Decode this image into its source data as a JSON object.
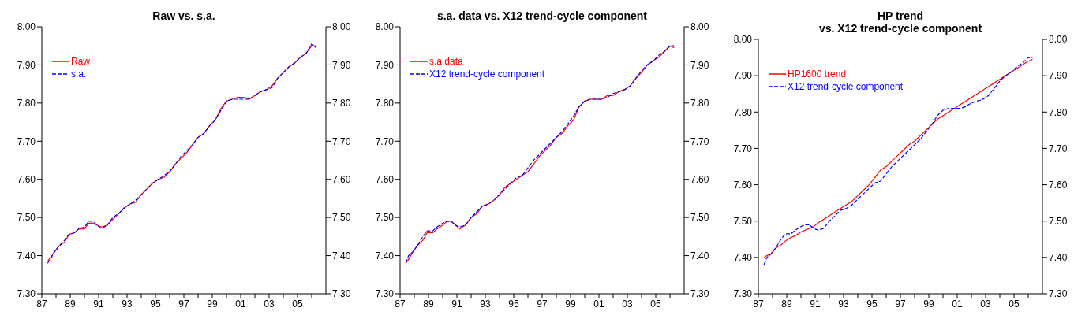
{
  "chart_data": [
    {
      "type": "line",
      "title": "Raw vs. s.a.",
      "legend": "top left",
      "grid": false,
      "x": [
        1987.4,
        1987.6,
        1987.9,
        1988.2,
        1988.6,
        1988.9,
        1989.3,
        1989.6,
        1990.0,
        1990.3,
        1990.6,
        1990.9,
        1991.2,
        1991.6,
        1992.0,
        1992.4,
        1992.8,
        1993.2,
        1993.6,
        1994.0,
        1994.4,
        1994.8,
        1995.2,
        1995.6,
        1996.0,
        1996.4,
        1996.8,
        1997.2,
        1997.6,
        1998.0,
        1998.4,
        1998.8,
        1999.2,
        1999.6,
        2000.0,
        2000.4,
        2000.8,
        2001.2,
        2001.6,
        2002.0,
        2002.4,
        2002.8,
        2003.2,
        2003.6,
        2004.0,
        2004.4,
        2004.8,
        2005.2,
        2005.6,
        2006.0,
        2006.3
      ],
      "series": [
        {
          "name": "Raw",
          "color": "#ff0000",
          "line_style": "solid",
          "values": [
            7.385,
            7.395,
            7.41,
            7.425,
            7.435,
            7.455,
            7.46,
            7.47,
            7.47,
            7.485,
            7.485,
            7.48,
            7.475,
            7.48,
            7.495,
            7.51,
            7.525,
            7.535,
            7.54,
            7.56,
            7.575,
            7.59,
            7.6,
            7.605,
            7.62,
            7.64,
            7.655,
            7.67,
            7.69,
            7.71,
            7.72,
            7.74,
            7.755,
            7.785,
            7.805,
            7.81,
            7.815,
            7.815,
            7.81,
            7.82,
            7.83,
            7.835,
            7.845,
            7.865,
            7.88,
            7.895,
            7.905,
            7.92,
            7.93,
            7.95,
            7.95
          ]
        },
        {
          "name": "s.a.",
          "color": "#0000ff",
          "line_style": "dashed",
          "values": [
            7.38,
            7.39,
            7.41,
            7.425,
            7.44,
            7.455,
            7.46,
            7.47,
            7.475,
            7.49,
            7.49,
            7.48,
            7.47,
            7.48,
            7.5,
            7.51,
            7.525,
            7.535,
            7.545,
            7.56,
            7.575,
            7.59,
            7.6,
            7.61,
            7.62,
            7.64,
            7.66,
            7.675,
            7.69,
            7.71,
            7.72,
            7.74,
            7.755,
            7.78,
            7.805,
            7.81,
            7.81,
            7.81,
            7.81,
            7.82,
            7.83,
            7.835,
            7.84,
            7.865,
            7.88,
            7.895,
            7.905,
            7.92,
            7.93,
            7.955,
            7.945
          ]
        }
      ],
      "xlim": [
        1987,
        2007
      ],
      "xticks": [
        {
          "value": 1987,
          "label": "87"
        },
        {
          "value": 1988,
          "label": null
        },
        {
          "value": 1989,
          "label": "89"
        },
        {
          "value": 1990,
          "label": null
        },
        {
          "value": 1991,
          "label": "91"
        },
        {
          "value": 1992,
          "label": null
        },
        {
          "value": 1993,
          "label": "93"
        },
        {
          "value": 1994,
          "label": null
        },
        {
          "value": 1995,
          "label": "95"
        },
        {
          "value": 1996,
          "label": null
        },
        {
          "value": 1997,
          "label": "97"
        },
        {
          "value": 1998,
          "label": null
        },
        {
          "value": 1999,
          "label": "99"
        },
        {
          "value": 2000,
          "label": null
        },
        {
          "value": 2001,
          "label": "01"
        },
        {
          "value": 2002,
          "label": null
        },
        {
          "value": 2003,
          "label": "03"
        },
        {
          "value": 2004,
          "label": null
        },
        {
          "value": 2005,
          "label": "05"
        },
        {
          "value": 2006,
          "label": null
        }
      ],
      "ylim": [
        7.3,
        8.0
      ],
      "yticks": [
        {
          "value": 7.3,
          "label": "7.30"
        },
        {
          "value": 7.4,
          "label": "7.40"
        },
        {
          "value": 7.5,
          "label": "7.50"
        },
        {
          "value": 7.6,
          "label": "7.60"
        },
        {
          "value": 7.7,
          "label": "7.70"
        },
        {
          "value": 7.8,
          "label": "7.80"
        },
        {
          "value": 7.9,
          "label": "7.90"
        },
        {
          "value": 8.0,
          "label": "8.00"
        }
      ],
      "y2lim": [
        7.3,
        8.0
      ],
      "y2ticks": [
        {
          "value": 7.3,
          "label": "7.30"
        },
        {
          "value": 7.4,
          "label": "7.40"
        },
        {
          "value": 7.5,
          "label": "7.50"
        },
        {
          "value": 7.6,
          "label": "7.60"
        },
        {
          "value": 7.7,
          "label": "7.70"
        },
        {
          "value": 7.8,
          "label": "7.80"
        },
        {
          "value": 7.9,
          "label": "7.90"
        },
        {
          "value": 8.0,
          "label": "8.00"
        }
      ]
    },
    {
      "type": "line",
      "title": "s.a. data vs. X12 trend-cycle component",
      "legend": "top left",
      "grid": false,
      "x": [
        1987.4,
        1987.6,
        1987.9,
        1988.2,
        1988.6,
        1988.9,
        1989.3,
        1989.6,
        1990.0,
        1990.3,
        1990.6,
        1990.9,
        1991.2,
        1991.6,
        1992.0,
        1992.4,
        1992.8,
        1993.2,
        1993.6,
        1994.0,
        1994.4,
        1994.8,
        1995.2,
        1995.6,
        1996.0,
        1996.4,
        1996.8,
        1997.2,
        1997.6,
        1998.0,
        1998.4,
        1998.8,
        1999.2,
        1999.6,
        2000.0,
        2000.4,
        2000.8,
        2001.2,
        2001.6,
        2002.0,
        2002.4,
        2002.8,
        2003.2,
        2003.6,
        2004.0,
        2004.4,
        2004.8,
        2005.2,
        2005.6,
        2006.0,
        2006.3
      ],
      "series": [
        {
          "name": "s.a.data",
          "color": "#ff0000",
          "line_style": "solid",
          "values": [
            7.38,
            7.39,
            7.41,
            7.425,
            7.44,
            7.46,
            7.46,
            7.47,
            7.48,
            7.49,
            7.49,
            7.48,
            7.47,
            7.48,
            7.5,
            7.51,
            7.53,
            7.535,
            7.545,
            7.56,
            7.58,
            7.59,
            7.6,
            7.61,
            7.62,
            7.64,
            7.66,
            7.675,
            7.69,
            7.71,
            7.72,
            7.74,
            7.755,
            7.79,
            7.805,
            7.81,
            7.81,
            7.81,
            7.82,
            7.82,
            7.83,
            7.835,
            7.845,
            7.865,
            7.88,
            7.9,
            7.91,
            7.92,
            7.935,
            7.95,
            7.945
          ]
        },
        {
          "name": "X12 trend-cycle component",
          "color": "#0000ff",
          "line_style": "dashed",
          "values": [
            7.38,
            7.4,
            7.41,
            7.425,
            7.45,
            7.465,
            7.465,
            7.475,
            7.485,
            7.49,
            7.49,
            7.48,
            7.475,
            7.48,
            7.5,
            7.515,
            7.53,
            7.535,
            7.545,
            7.56,
            7.575,
            7.59,
            7.605,
            7.61,
            7.63,
            7.65,
            7.665,
            7.68,
            7.695,
            7.71,
            7.725,
            7.745,
            7.765,
            7.79,
            7.805,
            7.81,
            7.81,
            7.81,
            7.815,
            7.825,
            7.83,
            7.835,
            7.845,
            7.865,
            7.885,
            7.9,
            7.91,
            7.925,
            7.935,
            7.95,
            7.95
          ]
        }
      ],
      "xlim": [
        1987,
        2007
      ],
      "xticks": [
        {
          "value": 1987,
          "label": "87"
        },
        {
          "value": 1988,
          "label": null
        },
        {
          "value": 1989,
          "label": "89"
        },
        {
          "value": 1990,
          "label": null
        },
        {
          "value": 1991,
          "label": "91"
        },
        {
          "value": 1992,
          "label": null
        },
        {
          "value": 1993,
          "label": "93"
        },
        {
          "value": 1994,
          "label": null
        },
        {
          "value": 1995,
          "label": "95"
        },
        {
          "value": 1996,
          "label": null
        },
        {
          "value": 1997,
          "label": "97"
        },
        {
          "value": 1998,
          "label": null
        },
        {
          "value": 1999,
          "label": "99"
        },
        {
          "value": 2000,
          "label": null
        },
        {
          "value": 2001,
          "label": "01"
        },
        {
          "value": 2002,
          "label": null
        },
        {
          "value": 2003,
          "label": "03"
        },
        {
          "value": 2004,
          "label": null
        },
        {
          "value": 2005,
          "label": "05"
        },
        {
          "value": 2006,
          "label": null
        }
      ],
      "ylim": [
        7.3,
        8.0
      ],
      "yticks": [
        {
          "value": 7.3,
          "label": "7.30"
        },
        {
          "value": 7.4,
          "label": "7.40"
        },
        {
          "value": 7.5,
          "label": "7.50"
        },
        {
          "value": 7.6,
          "label": "7.60"
        },
        {
          "value": 7.7,
          "label": "7.70"
        },
        {
          "value": 7.8,
          "label": "7.80"
        },
        {
          "value": 7.9,
          "label": "7.90"
        },
        {
          "value": 8.0,
          "label": "8.00"
        }
      ],
      "y2lim": [
        7.3,
        8.0
      ],
      "y2ticks": [
        {
          "value": 7.3,
          "label": "7.30"
        },
        {
          "value": 7.4,
          "label": "7.40"
        },
        {
          "value": 7.5,
          "label": "7.50"
        },
        {
          "value": 7.6,
          "label": "7.60"
        },
        {
          "value": 7.7,
          "label": "7.70"
        },
        {
          "value": 7.8,
          "label": "7.80"
        },
        {
          "value": 7.9,
          "label": "7.90"
        },
        {
          "value": 8.0,
          "label": "8.00"
        }
      ]
    },
    {
      "type": "line",
      "title": "HP trend\nvs. X12 trend-cycle component",
      "legend": "top left",
      "grid": false,
      "x": [
        1987.4,
        1987.6,
        1987.9,
        1988.2,
        1988.6,
        1988.9,
        1989.3,
        1989.6,
        1990.0,
        1990.3,
        1990.6,
        1990.9,
        1991.2,
        1991.6,
        1992.0,
        1992.4,
        1992.8,
        1993.2,
        1993.6,
        1994.0,
        1994.4,
        1994.8,
        1995.2,
        1995.6,
        1996.0,
        1996.4,
        1996.8,
        1997.2,
        1997.6,
        1998.0,
        1998.4,
        1998.8,
        1999.2,
        1999.6,
        2000.0,
        2000.4,
        2000.8,
        2001.2,
        2001.6,
        2002.0,
        2002.4,
        2002.8,
        2003.2,
        2003.6,
        2004.0,
        2004.4,
        2004.8,
        2005.2,
        2005.6,
        2006.0,
        2006.3
      ],
      "series": [
        {
          "name": "HP1600 trend",
          "color": "#ff0000",
          "line_style": "solid",
          "values": [
            7.4,
            7.405,
            7.41,
            7.425,
            7.435,
            7.445,
            7.455,
            7.46,
            7.47,
            7.475,
            7.48,
            7.485,
            7.495,
            7.505,
            7.515,
            7.525,
            7.535,
            7.545,
            7.555,
            7.57,
            7.585,
            7.6,
            7.62,
            7.64,
            7.65,
            7.665,
            7.68,
            7.695,
            7.71,
            7.72,
            7.735,
            7.75,
            7.765,
            7.78,
            7.79,
            7.8,
            7.81,
            7.82,
            7.83,
            7.84,
            7.85,
            7.86,
            7.87,
            7.88,
            7.89,
            7.9,
            7.91,
            7.92,
            7.93,
            7.94,
            7.945
          ]
        },
        {
          "name": "X12 trend-cycle component",
          "color": "#0000ff",
          "line_style": "dashed",
          "values": [
            7.38,
            7.4,
            7.41,
            7.425,
            7.45,
            7.465,
            7.465,
            7.475,
            7.485,
            7.49,
            7.49,
            7.48,
            7.475,
            7.48,
            7.5,
            7.515,
            7.53,
            7.535,
            7.545,
            7.56,
            7.575,
            7.59,
            7.605,
            7.61,
            7.63,
            7.65,
            7.665,
            7.68,
            7.695,
            7.71,
            7.725,
            7.745,
            7.765,
            7.79,
            7.805,
            7.81,
            7.81,
            7.81,
            7.815,
            7.825,
            7.83,
            7.835,
            7.845,
            7.865,
            7.885,
            7.9,
            7.91,
            7.925,
            7.935,
            7.95,
            7.95
          ]
        }
      ],
      "xlim": [
        1987,
        2007
      ],
      "xticks": [
        {
          "value": 1987,
          "label": "87"
        },
        {
          "value": 1988,
          "label": null
        },
        {
          "value": 1989,
          "label": "89"
        },
        {
          "value": 1990,
          "label": null
        },
        {
          "value": 1991,
          "label": "91"
        },
        {
          "value": 1992,
          "label": null
        },
        {
          "value": 1993,
          "label": "93"
        },
        {
          "value": 1994,
          "label": null
        },
        {
          "value": 1995,
          "label": "95"
        },
        {
          "value": 1996,
          "label": null
        },
        {
          "value": 1997,
          "label": "97"
        },
        {
          "value": 1998,
          "label": null
        },
        {
          "value": 1999,
          "label": "99"
        },
        {
          "value": 2000,
          "label": null
        },
        {
          "value": 2001,
          "label": "01"
        },
        {
          "value": 2002,
          "label": null
        },
        {
          "value": 2003,
          "label": "03"
        },
        {
          "value": 2004,
          "label": null
        },
        {
          "value": 2005,
          "label": "05"
        },
        {
          "value": 2006,
          "label": null
        }
      ],
      "ylim": [
        7.3,
        8.0
      ],
      "yticks": [
        {
          "value": 7.3,
          "label": "7.30"
        },
        {
          "value": 7.4,
          "label": "7.40"
        },
        {
          "value": 7.5,
          "label": "7.50"
        },
        {
          "value": 7.6,
          "label": "7.60"
        },
        {
          "value": 7.7,
          "label": "7.70"
        },
        {
          "value": 7.8,
          "label": "7.80"
        },
        {
          "value": 7.9,
          "label": "7.90"
        },
        {
          "value": 8.0,
          "label": "8.00"
        }
      ],
      "y2lim": [
        7.3,
        8.0
      ],
      "y2ticks": [
        {
          "value": 7.3,
          "label": "7.30"
        },
        {
          "value": 7.4,
          "label": "7.40"
        },
        {
          "value": 7.5,
          "label": "7.50"
        },
        {
          "value": 7.6,
          "label": "7.60"
        },
        {
          "value": 7.7,
          "label": "7.70"
        },
        {
          "value": 7.8,
          "label": "7.80"
        },
        {
          "value": 7.9,
          "label": "7.90"
        },
        {
          "value": 8.0,
          "label": "8.00"
        }
      ]
    }
  ]
}
